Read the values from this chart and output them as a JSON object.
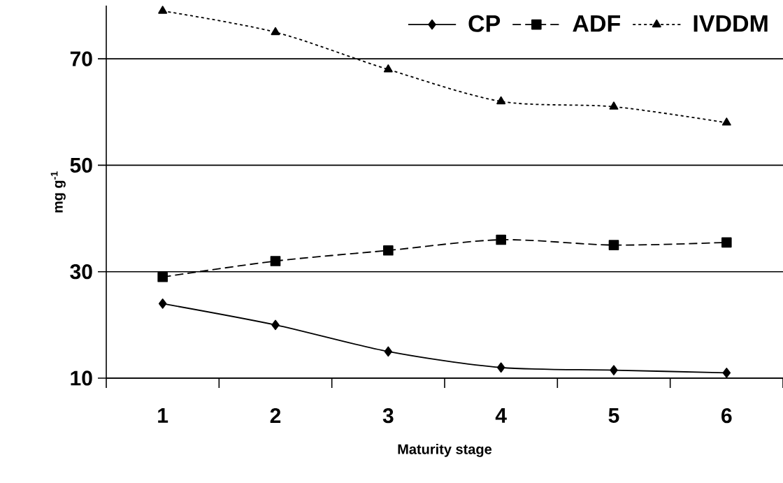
{
  "chart_data": {
    "type": "line",
    "xlabel": "Maturity stage",
    "ylabel": "mg g$^{-1}$",
    "categories": [
      "1",
      "2",
      "3",
      "4",
      "5",
      "6"
    ],
    "series": [
      {
        "name": "CP",
        "color": "#000000",
        "marker": "diamond",
        "line_style": "solid",
        "values": [
          24,
          20,
          15,
          12,
          11.5,
          11
        ]
      },
      {
        "name": "ADF",
        "color": "#000000",
        "marker": "square",
        "line_style": "dashed",
        "values": [
          29,
          32,
          34,
          36,
          35,
          35.5
        ]
      },
      {
        "name": "IVDDM",
        "color": "#000000",
        "marker": "triangle",
        "line_style": "dotted",
        "values": [
          79,
          75,
          68,
          62,
          61,
          58
        ]
      }
    ],
    "ylim": [
      10,
      80
    ],
    "yticks": [
      10,
      30,
      50,
      70
    ],
    "grid": "y",
    "legend": "top right"
  }
}
